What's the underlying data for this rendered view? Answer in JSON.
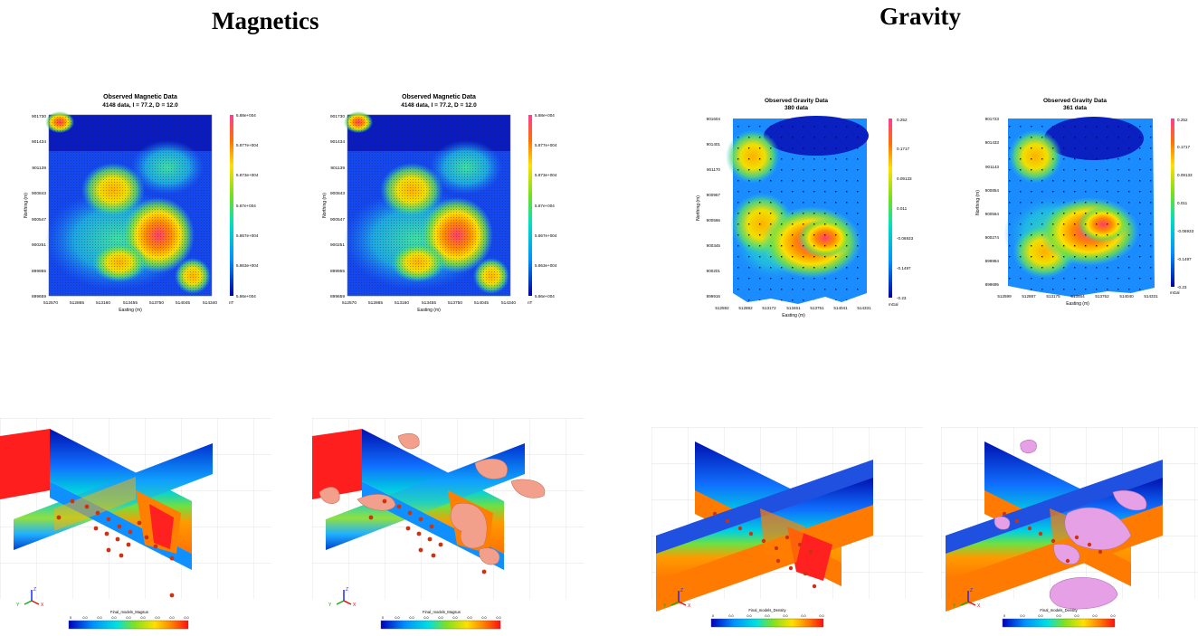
{
  "headings": {
    "left": "Magnetics",
    "right": "Gravity"
  },
  "mag_plot": {
    "title1": "Observed Magnetic Data",
    "title2": "4148 data,  I = 77.2,  D = 12.0",
    "y_ticks": [
      "901730",
      "901434",
      "901139",
      "900843",
      "900547",
      "900251",
      "899955",
      "899659"
    ],
    "x_ticks": [
      "512570",
      "512865",
      "513160",
      "513455",
      "513750",
      "514045",
      "514340"
    ],
    "xlabel": "Easting (m)",
    "ylabel": "Northing (m)",
    "colorbar_ticks": [
      "5.88e+004",
      "5.877e+004",
      "5.873e+004",
      "5.87e+004",
      "5.867e+004",
      "5.863e+004",
      "5.86e+004"
    ],
    "unit": "nT"
  },
  "grav_plot_1": {
    "title1": "Observed Gravity Data",
    "title2": "380 data",
    "y_ticks": [
      "901604",
      "901401",
      "901170",
      "900957",
      "900566",
      "900345",
      "900201",
      "899916"
    ],
    "x_ticks": [
      "512592",
      "512882",
      "513172",
      "513461",
      "513751",
      "514041",
      "514331"
    ],
    "xlabel": "Easting (m)",
    "ylabel": "Northing (m)",
    "colorbar_ticks": [
      "0.252",
      "0.1717",
      "0.09133",
      "0.011",
      "-0.06933",
      "-0.1497",
      "-0.23"
    ],
    "unit": "mGal"
  },
  "grav_plot_2": {
    "title1": "Observed Gravity Data",
    "title2": "361 data",
    "y_ticks": [
      "901723",
      "901433",
      "901143",
      "900854",
      "900564",
      "900274",
      "899984",
      "899695"
    ],
    "x_ticks": [
      "512599",
      "512887",
      "513175",
      "513464",
      "513752",
      "514040",
      "514331"
    ],
    "xlabel": "Easting (m)",
    "ylabel": "Northing (m)",
    "colorbar_ticks": [
      "0.252",
      "0.1717",
      "0.09133",
      "0.011",
      "-0.06933",
      "-0.1497",
      "-0.23"
    ],
    "unit": "mGal"
  },
  "mag_scale": {
    "title": "Final_models_Magsus",
    "ticks": [
      "0",
      "0.0",
      "0.0",
      "0.0",
      "0.0",
      "0.0",
      "0.0",
      "0.0",
      "0.0"
    ]
  },
  "grav_scale": {
    "title": "Final_models_Density",
    "ticks": [
      "0",
      "0.0",
      "0.0",
      "0.0",
      "0.0",
      "0.0",
      "0.0"
    ]
  },
  "axes_labels": {
    "z": "Z",
    "y": "Y",
    "x": "X"
  },
  "colors": {
    "low": "#0000b4",
    "high": "#ff4a8a",
    "blob_mag": "#f2a08c",
    "blob_grav": "#e6a0e6",
    "stations": "#cc3311"
  }
}
